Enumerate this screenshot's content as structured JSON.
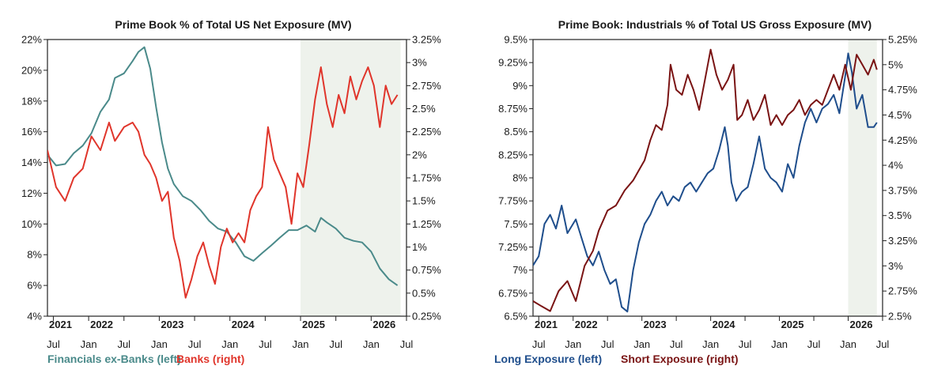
{
  "chart_data": [
    {
      "type": "line",
      "title": "Prime Book % of Total US Net Exposure (MV)",
      "left_axis": {
        "ticks": [
          "4%",
          "6%",
          "8%",
          "10%",
          "12%",
          "14%",
          "16%",
          "18%",
          "20%",
          "22%"
        ],
        "ylim": [
          4,
          22
        ]
      },
      "right_axis": {
        "ticks": [
          "0.25%",
          "0.5%",
          "0.75%",
          "1%",
          "1.25%",
          "1.5%",
          "1.75%",
          "2%",
          "2.25%",
          "2.5%",
          "2.75%",
          "3%",
          "3.25%"
        ],
        "ylim": [
          0.25,
          3.25
        ]
      },
      "x_month_ticks": [
        "Jul",
        "Jan",
        "Jul",
        "Jan",
        "Jul",
        "Jan",
        "Jul",
        "Jan",
        "Jul",
        "Jan",
        "Jul"
      ],
      "x_year_labels": [
        "2021",
        "2022",
        "2023",
        "2024",
        "2025",
        "2026"
      ],
      "x_range": [
        "2021-06",
        "2026-07"
      ],
      "shaded_region": [
        "2025-01",
        "2026-06"
      ],
      "grid": false,
      "legend_position": "bottom-left",
      "series": [
        {
          "name": "Financials ex-Banks (left)",
          "axis": "left",
          "color": "#4a8a8a",
          "points": [
            [
              "2021-06-01",
              14.5
            ],
            [
              "2021-07-15",
              13.8
            ],
            [
              "2021-09-01",
              13.9
            ],
            [
              "2021-10-15",
              14.6
            ],
            [
              "2021-12-01",
              15.1
            ],
            [
              "2022-01-15",
              15.9
            ],
            [
              "2022-03-01",
              17.3
            ],
            [
              "2022-04-15",
              18.1
            ],
            [
              "2022-05-15",
              19.5
            ],
            [
              "2022-07-01",
              19.8
            ],
            [
              "2022-08-15",
              20.6
            ],
            [
              "2022-09-15",
              21.2
            ],
            [
              "2022-10-15",
              21.5
            ],
            [
              "2022-11-15",
              20.1
            ],
            [
              "2022-12-15",
              17.6
            ],
            [
              "2023-01-15",
              15.3
            ],
            [
              "2023-02-15",
              13.6
            ],
            [
              "2023-03-15",
              12.6
            ],
            [
              "2023-05-01",
              11.8
            ],
            [
              "2023-06-15",
              11.5
            ],
            [
              "2023-08-01",
              10.9
            ],
            [
              "2023-09-15",
              10.2
            ],
            [
              "2023-11-01",
              9.7
            ],
            [
              "2023-12-15",
              9.5
            ],
            [
              "2024-02-01",
              8.8
            ],
            [
              "2024-03-15",
              7.9
            ],
            [
              "2024-05-01",
              7.6
            ],
            [
              "2024-06-15",
              8.1
            ],
            [
              "2024-08-01",
              8.6
            ],
            [
              "2024-09-15",
              9.1
            ],
            [
              "2024-11-01",
              9.6
            ],
            [
              "2024-12-15",
              9.6
            ],
            [
              "2025-02-01",
              9.9
            ],
            [
              "2025-03-15",
              9.5
            ],
            [
              "2025-04-15",
              10.4
            ],
            [
              "2025-05-15",
              10.1
            ],
            [
              "2025-07-01",
              9.7
            ],
            [
              "2025-08-15",
              9.1
            ],
            [
              "2025-10-01",
              8.9
            ],
            [
              "2025-11-15",
              8.8
            ],
            [
              "2026-01-01",
              8.2
            ],
            [
              "2026-02-15",
              7.1
            ],
            [
              "2026-04-01",
              6.4
            ],
            [
              "2026-05-15",
              6.0
            ]
          ]
        },
        {
          "name": "Banks (right)",
          "axis": "right",
          "color": "#e0352b",
          "points": [
            [
              "2021-06-01",
              2.05
            ],
            [
              "2021-07-15",
              1.65
            ],
            [
              "2021-09-01",
              1.5
            ],
            [
              "2021-10-15",
              1.75
            ],
            [
              "2021-12-01",
              1.85
            ],
            [
              "2022-01-15",
              2.2
            ],
            [
              "2022-03-01",
              2.05
            ],
            [
              "2022-04-15",
              2.35
            ],
            [
              "2022-05-15",
              2.15
            ],
            [
              "2022-07-01",
              2.3
            ],
            [
              "2022-08-15",
              2.35
            ],
            [
              "2022-09-15",
              2.25
            ],
            [
              "2022-10-15",
              2.0
            ],
            [
              "2022-11-15",
              1.9
            ],
            [
              "2022-12-15",
              1.75
            ],
            [
              "2023-01-15",
              1.5
            ],
            [
              "2023-02-15",
              1.6
            ],
            [
              "2023-03-15",
              1.1
            ],
            [
              "2023-04-15",
              0.85
            ],
            [
              "2023-05-15",
              0.45
            ],
            [
              "2023-06-15",
              0.65
            ],
            [
              "2023-07-15",
              0.9
            ],
            [
              "2023-08-15",
              1.05
            ],
            [
              "2023-09-15",
              0.8
            ],
            [
              "2023-10-15",
              0.6
            ],
            [
              "2023-11-15",
              1.0
            ],
            [
              "2023-12-15",
              1.2
            ],
            [
              "2024-01-15",
              1.05
            ],
            [
              "2024-02-15",
              1.15
            ],
            [
              "2024-03-15",
              1.05
            ],
            [
              "2024-04-15",
              1.4
            ],
            [
              "2024-05-15",
              1.55
            ],
            [
              "2024-06-15",
              1.65
            ],
            [
              "2024-07-15",
              2.3
            ],
            [
              "2024-08-15",
              1.95
            ],
            [
              "2024-09-15",
              1.8
            ],
            [
              "2024-10-15",
              1.65
            ],
            [
              "2024-11-15",
              1.25
            ],
            [
              "2024-12-15",
              1.8
            ],
            [
              "2025-01-15",
              1.65
            ],
            [
              "2025-02-15",
              2.1
            ],
            [
              "2025-03-15",
              2.6
            ],
            [
              "2025-04-15",
              2.95
            ],
            [
              "2025-05-15",
              2.55
            ],
            [
              "2025-06-15",
              2.3
            ],
            [
              "2025-07-15",
              2.65
            ],
            [
              "2025-08-15",
              2.45
            ],
            [
              "2025-09-15",
              2.85
            ],
            [
              "2025-10-15",
              2.6
            ],
            [
              "2025-11-15",
              2.8
            ],
            [
              "2025-12-15",
              2.95
            ],
            [
              "2026-01-15",
              2.75
            ],
            [
              "2026-02-15",
              2.3
            ],
            [
              "2026-03-15",
              2.75
            ],
            [
              "2026-04-15",
              2.55
            ],
            [
              "2026-05-15",
              2.65
            ]
          ]
        }
      ]
    },
    {
      "type": "line",
      "title": "Prime Book: Industrials % of Total US Gross Exposure (MV)",
      "left_axis": {
        "ticks": [
          "6.5%",
          "6.75%",
          "7%",
          "7.25%",
          "7.5%",
          "7.75%",
          "8%",
          "8.25%",
          "8.5%",
          "8.75%",
          "9%",
          "9.25%",
          "9.5%"
        ],
        "ylim": [
          6.5,
          9.5
        ]
      },
      "right_axis": {
        "ticks": [
          "2.5%",
          "2.75%",
          "3%",
          "3.25%",
          "3.5%",
          "3.75%",
          "4%",
          "4.25%",
          "4.5%",
          "4.75%",
          "5%",
          "5.25%"
        ],
        "ylim": [
          2.5,
          5.25
        ]
      },
      "x_month_ticks": [
        "Jul",
        "Jan",
        "Jul",
        "Jan",
        "Jul",
        "Jan",
        "Jul",
        "Jan",
        "Jul",
        "Jan",
        "Jul"
      ],
      "x_year_labels": [
        "2021",
        "2022",
        "2023",
        "2024",
        "2025",
        "2026"
      ],
      "x_range": [
        "2021-06",
        "2026-07"
      ],
      "shaded_region": [
        "2026-01",
        "2026-06"
      ],
      "grid": false,
      "legend_position": "bottom-left",
      "series": [
        {
          "name": "Long Exposure (left)",
          "axis": "left",
          "color": "#1f4e8c",
          "points": [
            [
              "2021-06-01",
              7.05
            ],
            [
              "2021-07-01",
              7.15
            ],
            [
              "2021-08-01",
              7.5
            ],
            [
              "2021-09-01",
              7.6
            ],
            [
              "2021-10-01",
              7.45
            ],
            [
              "2021-11-01",
              7.7
            ],
            [
              "2021-12-01",
              7.4
            ],
            [
              "2022-01-15",
              7.55
            ],
            [
              "2022-02-15",
              7.35
            ],
            [
              "2022-03-15",
              7.15
            ],
            [
              "2022-04-15",
              7.05
            ],
            [
              "2022-05-15",
              7.2
            ],
            [
              "2022-06-15",
              7.0
            ],
            [
              "2022-07-15",
              6.85
            ],
            [
              "2022-08-15",
              6.9
            ],
            [
              "2022-09-15",
              6.6
            ],
            [
              "2022-10-15",
              6.55
            ],
            [
              "2022-11-15",
              7.0
            ],
            [
              "2022-12-15",
              7.3
            ],
            [
              "2023-01-15",
              7.5
            ],
            [
              "2023-02-15",
              7.6
            ],
            [
              "2023-03-15",
              7.75
            ],
            [
              "2023-04-15",
              7.85
            ],
            [
              "2023-05-15",
              7.7
            ],
            [
              "2023-06-15",
              7.8
            ],
            [
              "2023-07-15",
              7.75
            ],
            [
              "2023-08-15",
              7.9
            ],
            [
              "2023-09-15",
              7.95
            ],
            [
              "2023-10-15",
              7.85
            ],
            [
              "2023-11-15",
              7.95
            ],
            [
              "2023-12-15",
              8.05
            ],
            [
              "2024-01-15",
              8.1
            ],
            [
              "2024-02-15",
              8.3
            ],
            [
              "2024-03-15",
              8.55
            ],
            [
              "2024-04-01",
              8.35
            ],
            [
              "2024-04-20",
              7.95
            ],
            [
              "2024-05-15",
              7.75
            ],
            [
              "2024-06-15",
              7.85
            ],
            [
              "2024-07-15",
              7.9
            ],
            [
              "2024-08-15",
              8.15
            ],
            [
              "2024-09-15",
              8.45
            ],
            [
              "2024-10-15",
              8.1
            ],
            [
              "2024-11-15",
              8.0
            ],
            [
              "2024-12-15",
              7.95
            ],
            [
              "2025-01-15",
              7.85
            ],
            [
              "2025-02-15",
              8.15
            ],
            [
              "2025-03-15",
              8.0
            ],
            [
              "2025-04-15",
              8.35
            ],
            [
              "2025-05-15",
              8.6
            ],
            [
              "2025-06-15",
              8.75
            ],
            [
              "2025-07-15",
              8.6
            ],
            [
              "2025-08-15",
              8.75
            ],
            [
              "2025-09-15",
              8.8
            ],
            [
              "2025-10-15",
              8.9
            ],
            [
              "2025-11-15",
              8.7
            ],
            [
              "2025-12-15",
              9.1
            ],
            [
              "2026-01-01",
              9.35
            ],
            [
              "2026-01-20",
              9.15
            ],
            [
              "2026-02-15",
              8.75
            ],
            [
              "2026-03-15",
              8.9
            ],
            [
              "2026-04-15",
              8.55
            ],
            [
              "2026-05-15",
              8.55
            ],
            [
              "2026-06-01",
              8.6
            ]
          ]
        },
        {
          "name": "Short Exposure (right)",
          "axis": "right",
          "color": "#7a1414",
          "points": [
            [
              "2021-06-01",
              2.65
            ],
            [
              "2021-07-15",
              2.6
            ],
            [
              "2021-09-01",
              2.55
            ],
            [
              "2021-10-15",
              2.75
            ],
            [
              "2021-12-01",
              2.85
            ],
            [
              "2022-01-15",
              2.65
            ],
            [
              "2022-03-01",
              3.0
            ],
            [
              "2022-04-15",
              3.15
            ],
            [
              "2022-05-15",
              3.35
            ],
            [
              "2022-07-01",
              3.55
            ],
            [
              "2022-08-15",
              3.6
            ],
            [
              "2022-10-01",
              3.75
            ],
            [
              "2022-11-15",
              3.85
            ],
            [
              "2022-12-15",
              3.95
            ],
            [
              "2023-01-15",
              4.05
            ],
            [
              "2023-02-15",
              4.25
            ],
            [
              "2023-03-15",
              4.4
            ],
            [
              "2023-04-15",
              4.35
            ],
            [
              "2023-05-15",
              4.6
            ],
            [
              "2023-06-01",
              5.0
            ],
            [
              "2023-07-01",
              4.75
            ],
            [
              "2023-08-01",
              4.7
            ],
            [
              "2023-09-01",
              4.9
            ],
            [
              "2023-10-01",
              4.75
            ],
            [
              "2023-11-01",
              4.55
            ],
            [
              "2023-12-01",
              4.85
            ],
            [
              "2024-01-01",
              5.15
            ],
            [
              "2024-02-01",
              4.9
            ],
            [
              "2024-03-01",
              4.75
            ],
            [
              "2024-04-01",
              4.85
            ],
            [
              "2024-05-01",
              5.0
            ],
            [
              "2024-05-20",
              4.45
            ],
            [
              "2024-06-15",
              4.5
            ],
            [
              "2024-07-15",
              4.65
            ],
            [
              "2024-08-15",
              4.45
            ],
            [
              "2024-09-15",
              4.55
            ],
            [
              "2024-10-15",
              4.7
            ],
            [
              "2024-11-15",
              4.4
            ],
            [
              "2024-12-15",
              4.5
            ],
            [
              "2025-01-15",
              4.4
            ],
            [
              "2025-02-15",
              4.5
            ],
            [
              "2025-03-15",
              4.55
            ],
            [
              "2025-04-15",
              4.65
            ],
            [
              "2025-05-15",
              4.5
            ],
            [
              "2025-06-15",
              4.6
            ],
            [
              "2025-07-15",
              4.65
            ],
            [
              "2025-08-15",
              4.6
            ],
            [
              "2025-09-15",
              4.75
            ],
            [
              "2025-10-15",
              4.9
            ],
            [
              "2025-11-15",
              4.75
            ],
            [
              "2025-12-15",
              5.0
            ],
            [
              "2026-01-15",
              4.75
            ],
            [
              "2026-02-15",
              5.1
            ],
            [
              "2026-03-15",
              5.0
            ],
            [
              "2026-04-15",
              4.9
            ],
            [
              "2026-05-15",
              5.05
            ],
            [
              "2026-06-01",
              4.95
            ]
          ]
        }
      ]
    }
  ]
}
